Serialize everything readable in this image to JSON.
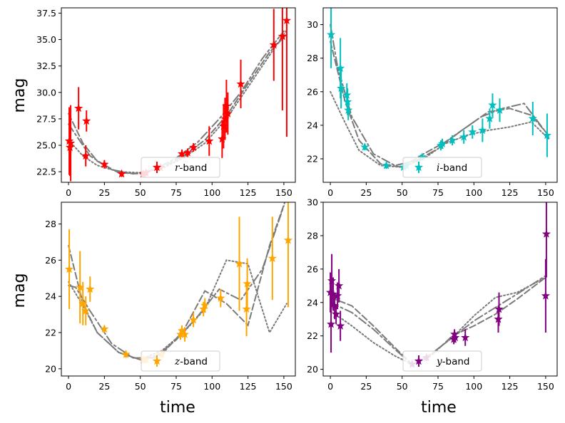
{
  "figure": {
    "ylabel_left": "mag",
    "xlabel_bottom": "time"
  },
  "chart_data": [
    {
      "type": "scatter",
      "panel": "top-left",
      "color": "#ff0000",
      "legend": {
        "symbol": "r",
        "suffix": "-band",
        "placement": "bottom-center"
      },
      "xlim": [
        -5,
        158
      ],
      "ylim": [
        38.0,
        21.5
      ],
      "xticks": [
        0,
        25,
        50,
        75,
        100,
        125,
        150
      ],
      "xtick_labels": [
        "0",
        "25",
        "50",
        "75",
        "100",
        "125",
        "150"
      ],
      "yticks": [
        22.5,
        25.0,
        27.5,
        30.0,
        32.5,
        35.0,
        37.5
      ],
      "ytick_labels": [
        "22.5",
        "25.0",
        "27.5",
        "30.0",
        "32.5",
        "35.0",
        "37.5"
      ],
      "points": [
        {
          "x": 0.5,
          "y": 25.4,
          "err": 3.2
        },
        {
          "x": 1.0,
          "y": 24.8,
          "err": 2.7
        },
        {
          "x": 1.5,
          "y": 25.2,
          "err": 3.6
        },
        {
          "x": 7.0,
          "y": 28.5,
          "err": 2.0
        },
        {
          "x": 12.0,
          "y": 24.0,
          "err": 1.0
        },
        {
          "x": 12.5,
          "y": 27.3,
          "err": 1.0
        },
        {
          "x": 25.0,
          "y": 23.2,
          "err": 0.4
        },
        {
          "x": 37.0,
          "y": 22.3,
          "err": 0.3
        },
        {
          "x": 52.0,
          "y": 22.3,
          "err": 0.3
        },
        {
          "x": 54.0,
          "y": 22.4,
          "err": 0.3
        },
        {
          "x": 64.0,
          "y": 22.9,
          "err": 0.3
        },
        {
          "x": 79.0,
          "y": 24.2,
          "err": 0.4
        },
        {
          "x": 83.0,
          "y": 24.3,
          "err": 0.4
        },
        {
          "x": 87.0,
          "y": 24.8,
          "err": 0.4
        },
        {
          "x": 98.0,
          "y": 25.4,
          "err": 1.4
        },
        {
          "x": 107.0,
          "y": 25.6,
          "err": 1.8
        },
        {
          "x": 108.0,
          "y": 26.8,
          "err": 2.1
        },
        {
          "x": 109.0,
          "y": 27.5,
          "err": 2.0
        },
        {
          "x": 110.0,
          "y": 28.7,
          "err": 2.5
        },
        {
          "x": 111.0,
          "y": 28.0,
          "err": 2.0
        },
        {
          "x": 120.0,
          "y": 30.8,
          "err": 2.3
        },
        {
          "x": 143.0,
          "y": 34.5,
          "err": 3.4
        },
        {
          "x": 149.0,
          "y": 35.3,
          "err": 7.0
        },
        {
          "x": 152.0,
          "y": 36.8,
          "err": 11.0
        }
      ],
      "curves": [
        {
          "style": "dotted",
          "x": [
            0,
            10,
            20,
            35,
            50,
            65,
            80,
            95,
            110,
            125,
            140,
            152
          ],
          "y": [
            25.5,
            24.0,
            23.1,
            22.5,
            22.4,
            22.8,
            23.8,
            25.2,
            27.5,
            30.5,
            33.5,
            35.9
          ]
        },
        {
          "style": "dashed",
          "x": [
            0,
            10,
            20,
            35,
            50,
            65,
            80,
            95,
            110,
            125,
            140,
            152
          ],
          "y": [
            28.0,
            25.2,
            23.5,
            22.4,
            22.3,
            22.9,
            24.0,
            25.5,
            27.8,
            30.8,
            33.8,
            35.5
          ]
        },
        {
          "style": "dashdot",
          "x": [
            0,
            5,
            15,
            30,
            45,
            60,
            75,
            90,
            105,
            120,
            135,
            150
          ],
          "y": [
            27.0,
            26.0,
            24.0,
            22.7,
            22.3,
            22.7,
            23.8,
            25.3,
            27.5,
            30.0,
            33.2,
            35.8
          ]
        }
      ]
    },
    {
      "type": "scatter",
      "panel": "top-right",
      "color": "#00bfbf",
      "legend": {
        "symbol": "i",
        "suffix": "-band",
        "placement": "bottom-center"
      },
      "xlim": [
        -5,
        158
      ],
      "ylim": [
        31.0,
        20.6
      ],
      "xticks": [
        0,
        25,
        50,
        75,
        100,
        125,
        150
      ],
      "xtick_labels": [
        "0",
        "25",
        "50",
        "75",
        "100",
        "125",
        "150"
      ],
      "yticks": [
        22,
        24,
        26,
        28,
        30
      ],
      "ytick_labels": [
        "22",
        "24",
        "26",
        "28",
        "30"
      ],
      "points": [
        {
          "x": 0.5,
          "y": 29.4,
          "err": 2.0
        },
        {
          "x": 7.0,
          "y": 27.4,
          "err": 1.8
        },
        {
          "x": 7.5,
          "y": 26.2,
          "err": 1.2
        },
        {
          "x": 11.5,
          "y": 25.8,
          "err": 0.7
        },
        {
          "x": 12.0,
          "y": 25.4,
          "err": 0.8
        },
        {
          "x": 12.5,
          "y": 24.9,
          "err": 0.6
        },
        {
          "x": 24.0,
          "y": 22.7,
          "err": 0.2
        },
        {
          "x": 39.0,
          "y": 21.6,
          "err": 0.2
        },
        {
          "x": 51.0,
          "y": 21.5,
          "err": 0.2
        },
        {
          "x": 53.0,
          "y": 21.6,
          "err": 0.2
        },
        {
          "x": 64.0,
          "y": 22.1,
          "err": 0.2
        },
        {
          "x": 77.0,
          "y": 22.8,
          "err": 0.3
        },
        {
          "x": 78.0,
          "y": 22.9,
          "err": 0.3
        },
        {
          "x": 85.0,
          "y": 23.1,
          "err": 0.3
        },
        {
          "x": 93.0,
          "y": 23.3,
          "err": 0.4
        },
        {
          "x": 99.0,
          "y": 23.6,
          "err": 0.4
        },
        {
          "x": 106.0,
          "y": 23.7,
          "err": 0.7
        },
        {
          "x": 111.0,
          "y": 24.4,
          "err": 0.6
        },
        {
          "x": 113.0,
          "y": 25.2,
          "err": 0.7
        },
        {
          "x": 118.0,
          "y": 24.9,
          "err": 0.7
        },
        {
          "x": 141.0,
          "y": 24.4,
          "err": 1.0
        },
        {
          "x": 151.0,
          "y": 23.4,
          "err": 1.3
        }
      ],
      "curves": [
        {
          "style": "dotted",
          "x": [
            0,
            10,
            20,
            35,
            50,
            65,
            80,
            95,
            110,
            125,
            140,
            152
          ],
          "y": [
            26.0,
            24.2,
            22.5,
            21.6,
            21.5,
            22.0,
            22.9,
            23.4,
            23.7,
            23.9,
            24.2,
            23.2
          ]
        },
        {
          "style": "dashed",
          "x": [
            0,
            10,
            20,
            35,
            50,
            65,
            80,
            95,
            110,
            125,
            140,
            152
          ],
          "y": [
            29.0,
            25.5,
            23.1,
            21.7,
            21.5,
            22.3,
            23.0,
            23.9,
            24.8,
            25.0,
            24.6,
            23.4
          ]
        },
        {
          "style": "dashdot",
          "x": [
            0,
            5,
            15,
            30,
            45,
            60,
            75,
            90,
            105,
            120,
            135,
            150
          ],
          "y": [
            30.0,
            27.5,
            24.5,
            22.3,
            21.6,
            21.9,
            22.6,
            23.6,
            24.5,
            25.0,
            25.3,
            23.6
          ]
        }
      ]
    },
    {
      "type": "scatter",
      "panel": "bottom-left",
      "color": "#ffa500",
      "legend": {
        "symbol": "z",
        "suffix": "-band",
        "placement": "bottom-center"
      },
      "xlim": [
        -5,
        158
      ],
      "ylim": [
        29.2,
        19.6
      ],
      "xticks": [
        0,
        25,
        50,
        75,
        100,
        125,
        150
      ],
      "xtick_labels": [
        "0",
        "25",
        "50",
        "75",
        "100",
        "125",
        "150"
      ],
      "yticks": [
        20,
        22,
        24,
        26,
        28
      ],
      "ytick_labels": [
        "20",
        "22",
        "24",
        "26",
        "28"
      ],
      "points": [
        {
          "x": 0.5,
          "y": 25.5,
          "err": 2.2
        },
        {
          "x": 8.0,
          "y": 24.5,
          "err": 2.0
        },
        {
          "x": 10.0,
          "y": 23.6,
          "err": 1.2
        },
        {
          "x": 12.0,
          "y": 23.2,
          "err": 0.8
        },
        {
          "x": 15.0,
          "y": 24.4,
          "err": 0.7
        },
        {
          "x": 25.0,
          "y": 22.2,
          "err": 0.2
        },
        {
          "x": 40.0,
          "y": 20.8,
          "err": 0.2
        },
        {
          "x": 52.0,
          "y": 20.5,
          "err": 0.2
        },
        {
          "x": 54.0,
          "y": 20.5,
          "err": 0.2
        },
        {
          "x": 65.0,
          "y": 20.8,
          "err": 0.2
        },
        {
          "x": 78.0,
          "y": 21.9,
          "err": 0.3
        },
        {
          "x": 79.0,
          "y": 22.1,
          "err": 0.3
        },
        {
          "x": 81.0,
          "y": 21.9,
          "err": 0.4
        },
        {
          "x": 87.0,
          "y": 22.7,
          "err": 0.4
        },
        {
          "x": 94.0,
          "y": 23.3,
          "err": 0.4
        },
        {
          "x": 95.0,
          "y": 23.5,
          "err": 0.4
        },
        {
          "x": 106.0,
          "y": 23.9,
          "err": 0.5
        },
        {
          "x": 119.0,
          "y": 25.8,
          "err": 2.6
        },
        {
          "x": 124.0,
          "y": 23.3,
          "err": 1.5
        },
        {
          "x": 124.5,
          "y": 24.7,
          "err": 1.4
        },
        {
          "x": 142.0,
          "y": 26.1,
          "err": 2.3
        },
        {
          "x": 153.0,
          "y": 27.1,
          "err": 3.7
        }
      ],
      "curves": [
        {
          "style": "dotted",
          "x": [
            0,
            10,
            20,
            35,
            50,
            65,
            80,
            95,
            110,
            125,
            140,
            152
          ],
          "y": [
            24.8,
            23.5,
            22.0,
            20.9,
            20.5,
            21.0,
            22.0,
            23.3,
            26.0,
            25.8,
            22.0,
            23.6
          ]
        },
        {
          "style": "dashed",
          "x": [
            0,
            10,
            20,
            35,
            50,
            65,
            80,
            95,
            110,
            125,
            140,
            152
          ],
          "y": [
            26.8,
            23.6,
            22.0,
            20.9,
            20.5,
            20.8,
            22.1,
            24.3,
            23.6,
            22.4,
            26.8,
            29.5
          ]
        },
        {
          "style": "dashdot",
          "x": [
            0,
            5,
            15,
            30,
            45,
            60,
            75,
            90,
            105,
            120,
            135,
            150
          ],
          "y": [
            24.6,
            24.5,
            23.2,
            21.4,
            20.6,
            20.6,
            21.6,
            22.9,
            24.4,
            23.8,
            25.5,
            29.0
          ]
        }
      ]
    },
    {
      "type": "scatter",
      "panel": "bottom-right",
      "color": "#800080",
      "legend": {
        "symbol": "y",
        "suffix": "-band",
        "placement": "bottom-center"
      },
      "xlim": [
        -5,
        158
      ],
      "ylim": [
        30.0,
        19.6
      ],
      "xticks": [
        0,
        25,
        50,
        75,
        100,
        125,
        150
      ],
      "xtick_labels": [
        "0",
        "25",
        "50",
        "75",
        "100",
        "125",
        "150"
      ],
      "yticks": [
        20,
        22,
        24,
        26,
        28,
        30
      ],
      "ytick_labels": [
        "20",
        "22",
        "24",
        "26",
        "28",
        "30"
      ],
      "points": [
        {
          "x": 0.0,
          "y": 24.6,
          "err": 1.2
        },
        {
          "x": 0.5,
          "y": 22.7,
          "err": 1.7
        },
        {
          "x": 1.0,
          "y": 25.3,
          "err": 1.6
        },
        {
          "x": 2.0,
          "y": 24.5,
          "err": 1.0
        },
        {
          "x": 3.0,
          "y": 23.8,
          "err": 0.8
        },
        {
          "x": 4.0,
          "y": 23.3,
          "err": 0.6
        },
        {
          "x": 5.0,
          "y": 24.4,
          "err": 0.8
        },
        {
          "x": 6.0,
          "y": 25.0,
          "err": 1.0
        },
        {
          "x": 7.0,
          "y": 22.6,
          "err": 0.9
        },
        {
          "x": 57.0,
          "y": 20.3,
          "err": 0.15
        },
        {
          "x": 67.0,
          "y": 20.7,
          "err": 0.2
        },
        {
          "x": 86.0,
          "y": 21.8,
          "err": 0.3
        },
        {
          "x": 86.5,
          "y": 22.1,
          "err": 0.3
        },
        {
          "x": 87.0,
          "y": 21.9,
          "err": 0.3
        },
        {
          "x": 94.0,
          "y": 21.9,
          "err": 0.5
        },
        {
          "x": 117.0,
          "y": 23.0,
          "err": 0.8
        },
        {
          "x": 117.5,
          "y": 23.6,
          "err": 1.0
        },
        {
          "x": 150.0,
          "y": 24.4,
          "err": 2.2
        },
        {
          "x": 150.5,
          "y": 28.1,
          "err": 2.6
        }
      ],
      "curves": [
        {
          "style": "dotted",
          "x": [
            0,
            15,
            30,
            45,
            57,
            70,
            85,
            100,
            115,
            130,
            150
          ],
          "y": [
            23.5,
            22.6,
            21.6,
            20.8,
            20.3,
            20.9,
            21.9,
            23.2,
            24.3,
            24.6,
            25.5
          ]
        },
        {
          "style": "dashed",
          "x": [
            0,
            15,
            30,
            45,
            57,
            70,
            85,
            100,
            115,
            130,
            150
          ],
          "y": [
            24.3,
            23.8,
            22.6,
            21.3,
            20.3,
            20.8,
            22.0,
            22.6,
            23.3,
            24.2,
            25.5
          ]
        },
        {
          "style": "dashdot",
          "x": [
            0,
            15,
            30,
            45,
            57,
            70,
            85,
            100,
            115,
            130,
            150
          ],
          "y": [
            24.0,
            23.4,
            22.4,
            21.2,
            20.3,
            20.9,
            21.9,
            22.9,
            23.7,
            24.5,
            25.6
          ]
        }
      ]
    }
  ]
}
